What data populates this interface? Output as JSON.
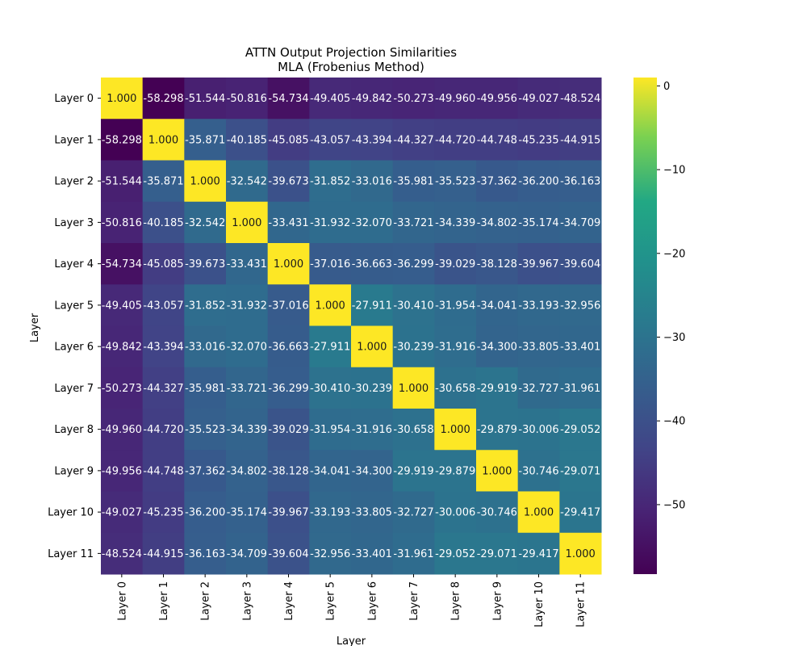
{
  "chart_data": {
    "type": "heatmap",
    "title": "ATTN Output Projection Similarities",
    "subtitle": "MLA (Frobenius Method)",
    "xlabel": "Layer",
    "ylabel": "Layer",
    "x_categories": [
      "Layer 0",
      "Layer 1",
      "Layer 2",
      "Layer 3",
      "Layer 4",
      "Layer 5",
      "Layer 6",
      "Layer 7",
      "Layer 8",
      "Layer 9",
      "Layer 10",
      "Layer 11"
    ],
    "y_categories": [
      "Layer 0",
      "Layer 1",
      "Layer 2",
      "Layer 3",
      "Layer 4",
      "Layer 5",
      "Layer 6",
      "Layer 7",
      "Layer 8",
      "Layer 9",
      "Layer 10",
      "Layer 11"
    ],
    "values": [
      [
        1.0,
        -58.298,
        -51.544,
        -50.816,
        -54.734,
        -49.405,
        -49.842,
        -50.273,
        -49.96,
        -49.956,
        -49.027,
        -48.524
      ],
      [
        -58.298,
        1.0,
        -35.871,
        -40.185,
        -45.085,
        -43.057,
        -43.394,
        -44.327,
        -44.72,
        -44.748,
        -45.235,
        -44.915
      ],
      [
        -51.544,
        -35.871,
        1.0,
        -32.542,
        -39.673,
        -31.852,
        -33.016,
        -35.981,
        -35.523,
        -37.362,
        -36.2,
        -36.163
      ],
      [
        -50.816,
        -40.185,
        -32.542,
        1.0,
        -33.431,
        -31.932,
        -32.07,
        -33.721,
        -34.339,
        -34.802,
        -35.174,
        -34.709
      ],
      [
        -54.734,
        -45.085,
        -39.673,
        -33.431,
        1.0,
        -37.016,
        -36.663,
        -36.299,
        -39.029,
        -38.128,
        -39.967,
        -39.604
      ],
      [
        -49.405,
        -43.057,
        -31.852,
        -31.932,
        -37.016,
        1.0,
        -27.911,
        -30.41,
        -31.954,
        -34.041,
        -33.193,
        -32.956
      ],
      [
        -49.842,
        -43.394,
        -33.016,
        -32.07,
        -36.663,
        -27.911,
        1.0,
        -30.239,
        -31.916,
        -34.3,
        -33.805,
        -33.401
      ],
      [
        -50.273,
        -44.327,
        -35.981,
        -33.721,
        -36.299,
        -30.41,
        -30.239,
        1.0,
        -30.658,
        -29.919,
        -32.727,
        -31.961
      ],
      [
        -49.96,
        -44.72,
        -35.523,
        -34.339,
        -39.029,
        -31.954,
        -31.916,
        -30.658,
        1.0,
        -29.879,
        -30.006,
        -29.052
      ],
      [
        -49.956,
        -44.748,
        -37.362,
        -34.802,
        -38.128,
        -34.041,
        -34.3,
        -29.919,
        -29.879,
        1.0,
        -30.746,
        -29.071
      ],
      [
        -49.027,
        -45.235,
        -36.2,
        -35.174,
        -39.967,
        -33.193,
        -33.805,
        -32.727,
        -30.006,
        -30.746,
        1.0,
        -29.417
      ],
      [
        -48.524,
        -44.915,
        -36.163,
        -34.709,
        -39.604,
        -32.956,
        -33.401,
        -31.961,
        -29.052,
        -29.071,
        -29.417,
        1.0
      ]
    ],
    "value_format": "0.000",
    "colormap": "viridis",
    "colorbar": {
      "range": [
        -58.298,
        1.0
      ],
      "ticks": [
        0,
        -10,
        -20,
        -30,
        -40,
        -50
      ],
      "tick_labels": [
        "0",
        "−10",
        "−20",
        "−30",
        "−40",
        "−50"
      ]
    },
    "grid": false,
    "legend": "none"
  }
}
